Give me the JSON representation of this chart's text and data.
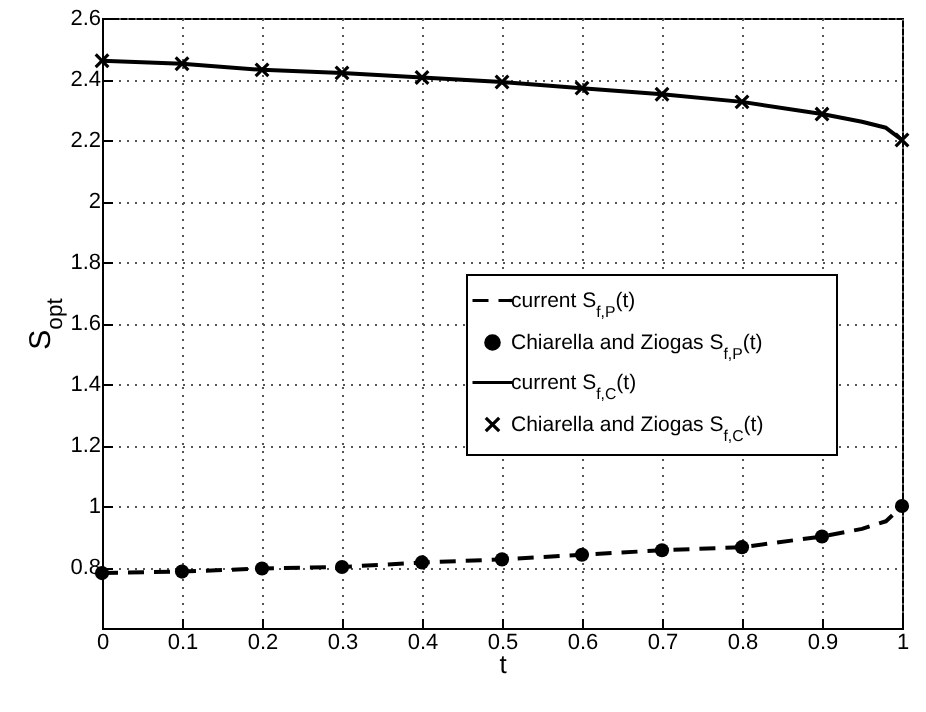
{
  "chart_data": {
    "type": "line",
    "xlabel": "t",
    "ylabel": "S$_{opt}$",
    "xlim": [
      0,
      1
    ],
    "ylim": [
      0.6,
      2.6
    ],
    "xticks": [
      0,
      0.1,
      0.2,
      0.3,
      0.4,
      0.5,
      0.6,
      0.7,
      0.8,
      0.9,
      1
    ],
    "yticks": [
      0.8,
      1,
      1.2,
      1.4,
      1.6,
      1.8,
      2,
      2.2,
      2.4,
      2.6
    ],
    "grid": true,
    "legend": "right",
    "series": [
      {
        "name": "current S$_{f,P}$(t)",
        "type": "line",
        "line_style": "dashed",
        "color": "#000000",
        "x": [
          0,
          0.1,
          0.2,
          0.3,
          0.4,
          0.5,
          0.6,
          0.7,
          0.8,
          0.9,
          0.95,
          0.98,
          1
        ],
        "values": [
          0.78,
          0.785,
          0.795,
          0.8,
          0.815,
          0.825,
          0.84,
          0.855,
          0.865,
          0.9,
          0.925,
          0.95,
          1.0
        ]
      },
      {
        "name": "Chiarella and Ziogas S$_{f,P}$(t)",
        "type": "scatter",
        "marker": "circle",
        "color": "#000000",
        "x": [
          0,
          0.1,
          0.2,
          0.3,
          0.4,
          0.5,
          0.6,
          0.7,
          0.8,
          0.9,
          1
        ],
        "values": [
          0.78,
          0.785,
          0.795,
          0.8,
          0.815,
          0.825,
          0.84,
          0.855,
          0.865,
          0.9,
          1.0
        ]
      },
      {
        "name": "current S$_{f,C}$(t)",
        "type": "line",
        "line_style": "solid",
        "color": "#000000",
        "x": [
          0,
          0.1,
          0.2,
          0.3,
          0.4,
          0.5,
          0.6,
          0.7,
          0.8,
          0.9,
          0.95,
          0.98,
          1
        ],
        "values": [
          2.46,
          2.45,
          2.43,
          2.42,
          2.405,
          2.39,
          2.37,
          2.35,
          2.325,
          2.285,
          2.26,
          2.24,
          2.2
        ]
      },
      {
        "name": "Chiarella and Ziogas S$_{f,C}$(t)",
        "type": "scatter",
        "marker": "cross",
        "color": "#000000",
        "x": [
          0,
          0.1,
          0.2,
          0.3,
          0.4,
          0.5,
          0.6,
          0.7,
          0.8,
          0.9,
          1
        ],
        "values": [
          2.46,
          2.45,
          2.43,
          2.42,
          2.405,
          2.39,
          2.37,
          2.35,
          2.325,
          2.285,
          2.2
        ]
      }
    ]
  }
}
